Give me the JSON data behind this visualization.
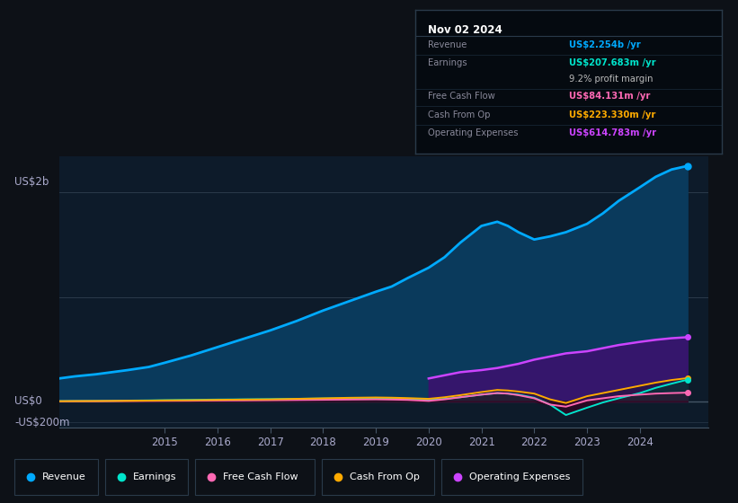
{
  "background_color": "#0d1117",
  "plot_bg_color": "#0d1b2a",
  "title": "Nov 02 2024",
  "ylabel_top": "US$2b",
  "ylabel_mid": "US$0",
  "ylabel_bot": "-US$200m",
  "x_years": [
    2013.0,
    2013.3,
    2013.7,
    2014.0,
    2014.3,
    2014.7,
    2015.0,
    2015.5,
    2016.0,
    2016.5,
    2017.0,
    2017.5,
    2018.0,
    2018.5,
    2019.0,
    2019.3,
    2019.6,
    2020.0,
    2020.3,
    2020.6,
    2021.0,
    2021.3,
    2021.5,
    2021.7,
    2022.0,
    2022.3,
    2022.6,
    2023.0,
    2023.3,
    2023.6,
    2024.0,
    2024.3,
    2024.6,
    2024.9
  ],
  "revenue": [
    0.22,
    0.24,
    0.26,
    0.28,
    0.3,
    0.33,
    0.37,
    0.44,
    0.52,
    0.6,
    0.68,
    0.77,
    0.87,
    0.96,
    1.05,
    1.1,
    1.18,
    1.28,
    1.38,
    1.52,
    1.68,
    1.72,
    1.68,
    1.62,
    1.55,
    1.58,
    1.62,
    1.7,
    1.8,
    1.92,
    2.05,
    2.15,
    2.22,
    2.254
  ],
  "earnings": [
    0.003,
    0.004,
    0.005,
    0.006,
    0.008,
    0.01,
    0.012,
    0.015,
    0.018,
    0.02,
    0.022,
    0.025,
    0.028,
    0.03,
    0.032,
    0.03,
    0.025,
    0.015,
    0.025,
    0.04,
    0.065,
    0.08,
    0.075,
    0.065,
    0.035,
    -0.03,
    -0.13,
    -0.06,
    -0.01,
    0.03,
    0.08,
    0.13,
    0.17,
    0.208
  ],
  "free_cash_flow": [
    0.001,
    0.002,
    0.002,
    0.003,
    0.004,
    0.005,
    0.006,
    0.007,
    0.009,
    0.01,
    0.012,
    0.014,
    0.016,
    0.018,
    0.02,
    0.018,
    0.015,
    0.005,
    0.02,
    0.04,
    0.065,
    0.08,
    0.075,
    0.06,
    0.03,
    -0.03,
    -0.05,
    0.01,
    0.03,
    0.05,
    0.065,
    0.075,
    0.08,
    0.084
  ],
  "cash_from_op": [
    0.002,
    0.003,
    0.004,
    0.005,
    0.006,
    0.008,
    0.01,
    0.012,
    0.015,
    0.018,
    0.02,
    0.025,
    0.03,
    0.035,
    0.038,
    0.036,
    0.032,
    0.025,
    0.04,
    0.06,
    0.09,
    0.11,
    0.105,
    0.095,
    0.075,
    0.02,
    -0.015,
    0.05,
    0.08,
    0.11,
    0.15,
    0.18,
    0.205,
    0.223
  ],
  "op_expenses": [
    0.0,
    0.0,
    0.0,
    0.0,
    0.0,
    0.0,
    0.0,
    0.0,
    0.0,
    0.0,
    0.0,
    0.0,
    0.0,
    0.0,
    0.0,
    0.0,
    0.0,
    0.22,
    0.25,
    0.28,
    0.3,
    0.32,
    0.34,
    0.36,
    0.4,
    0.43,
    0.46,
    0.48,
    0.51,
    0.54,
    0.57,
    0.59,
    0.605,
    0.615
  ],
  "color_revenue": "#00aaff",
  "color_earnings": "#00e5cc",
  "color_fcf": "#ff69b4",
  "color_cashop": "#ffaa00",
  "color_opex": "#cc44ff",
  "legend_labels": [
    "Revenue",
    "Earnings",
    "Free Cash Flow",
    "Cash From Op",
    "Operating Expenses"
  ],
  "info_rows": [
    {
      "label": "Revenue",
      "value": "US$2.254b /yr",
      "value_color": "#00aaff"
    },
    {
      "label": "Earnings",
      "value": "US$207.683m /yr",
      "value_color": "#00e5cc"
    },
    {
      "label": "",
      "value": "9.2% profit margin",
      "value_color": "#bbbbbb"
    },
    {
      "label": "Free Cash Flow",
      "value": "US$84.131m /yr",
      "value_color": "#ff69b4"
    },
    {
      "label": "Cash From Op",
      "value": "US$223.330m /yr",
      "value_color": "#ffaa00"
    },
    {
      "label": "Operating Expenses",
      "value": "US$614.783m /yr",
      "value_color": "#cc44ff"
    }
  ],
  "xtick_years": [
    2015,
    2016,
    2017,
    2018,
    2019,
    2020,
    2021,
    2022,
    2023,
    2024
  ]
}
